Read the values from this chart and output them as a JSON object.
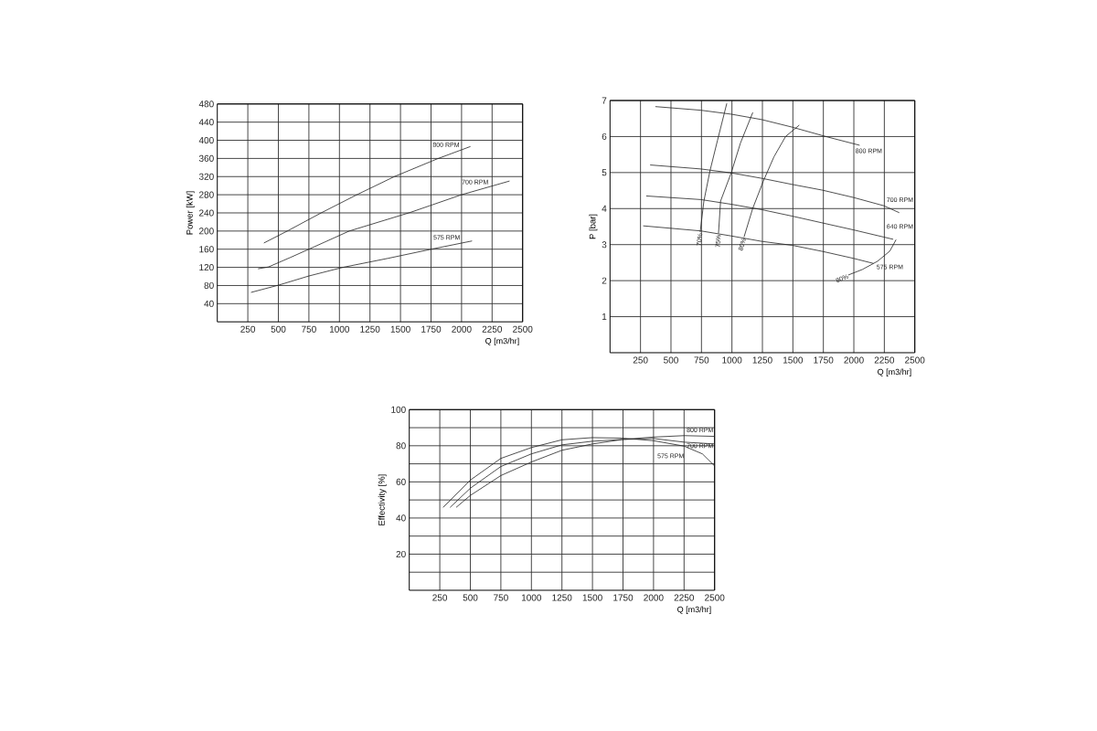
{
  "chart_data": [
    {
      "type": "line",
      "xlabel": "Q [m3/hr]",
      "ylabel": "Power [kW]",
      "xlim": [
        0,
        2500
      ],
      "ylim": [
        0,
        480
      ],
      "xticks": [
        250,
        500,
        750,
        1000,
        1250,
        1500,
        1750,
        2000,
        2250,
        2500
      ],
      "yticks": [
        40,
        80,
        120,
        160,
        200,
        240,
        280,
        320,
        360,
        400,
        440,
        480
      ],
      "grid": true,
      "series": [
        {
          "name": "800 RPM",
          "color": "#222222",
          "x": [
            384,
            580,
            850,
            1150,
            1450,
            1800,
            2070
          ],
          "values": [
            174,
            201,
            240,
            281,
            320,
            359,
            386
          ]
        },
        {
          "name": "700 RPM",
          "color": "#222222",
          "x": [
            337,
            420,
            600,
            750,
            1080,
            1580,
            2000,
            2390
          ],
          "values": [
            117,
            121,
            142,
            160,
            200,
            241,
            280,
            310
          ]
        },
        {
          "name": "575 RPM",
          "color": "#222222",
          "x": [
            279,
            504,
            750,
            1028,
            1400,
            1752,
            2083
          ],
          "values": [
            65,
            81,
            101,
            120,
            140,
            160,
            178
          ]
        }
      ]
    },
    {
      "type": "line",
      "xlabel": "Q [m3/hr]",
      "ylabel": "P [bar]",
      "xlim": [
        0,
        2500
      ],
      "ylim": [
        0,
        7
      ],
      "xticks": [
        250,
        500,
        750,
        1000,
        1250,
        1500,
        1750,
        2000,
        2250,
        2500
      ],
      "yticks": [
        1,
        2,
        3,
        4,
        5,
        6,
        7
      ],
      "grid": true,
      "series": [
        {
          "name": "800 RPM",
          "color": "#222222",
          "x": [
            375,
            745,
            995,
            1245,
            1495,
            1770,
            2045
          ],
          "values": [
            6.83,
            6.73,
            6.62,
            6.47,
            6.26,
            6.0,
            5.76
          ]
        },
        {
          "name": "700 RPM",
          "color": "#222222",
          "x": [
            332,
            745,
            995,
            1245,
            1495,
            1745,
            1995,
            2245,
            2370
          ],
          "values": [
            5.21,
            5.1,
            4.99,
            4.84,
            4.67,
            4.51,
            4.31,
            4.08,
            3.89
          ]
        },
        {
          "name": "640 RPM",
          "color": "#222222",
          "x": [
            300,
            745,
            995,
            1245,
            1495,
            1745,
            1995,
            2245,
            2320
          ],
          "values": [
            4.35,
            4.25,
            4.12,
            3.97,
            3.79,
            3.6,
            3.41,
            3.21,
            3.15
          ]
        },
        {
          "name": "575 RPM",
          "color": "#222222",
          "x": [
            275,
            745,
            995,
            1245,
            1495,
            1745,
            1995,
            2158
          ],
          "values": [
            3.52,
            3.38,
            3.24,
            3.09,
            2.98,
            2.81,
            2.62,
            2.48
          ]
        },
        {
          "name": "70%",
          "color": "#222222",
          "x": [
            740,
            770,
            820,
            882,
            957
          ],
          "values": [
            3.36,
            4.21,
            5.05,
            5.9,
            6.91
          ]
        },
        {
          "name": "75%",
          "color": "#222222",
          "x": [
            890,
            907,
            995,
            1070,
            1170
          ],
          "values": [
            3.32,
            4.21,
            5.0,
            5.82,
            6.66
          ]
        },
        {
          "name": "80%",
          "color": "#222222",
          "x": [
            1100,
            1170,
            1257,
            1345,
            1440,
            1550
          ],
          "values": [
            3.22,
            4.0,
            4.76,
            5.44,
            6.0,
            6.31
          ]
        },
        {
          "name": "80%",
          "color": "#222222",
          "x": [
            1957,
            2070,
            2195,
            2295,
            2345
          ],
          "values": [
            2.16,
            2.31,
            2.54,
            2.82,
            3.13
          ]
        }
      ]
    },
    {
      "type": "line",
      "xlabel": "Q [m3/hr]",
      "ylabel": "Effectivity [%]",
      "xlim": [
        0,
        2500
      ],
      "ylim": [
        0,
        100
      ],
      "xticks": [
        250,
        500,
        750,
        1000,
        1250,
        1500,
        1750,
        2000,
        2250,
        2500
      ],
      "yticks": [
        {
          "value": 10,
          "label": null
        },
        20,
        {
          "value": 30,
          "label": null
        },
        40,
        {
          "value": 50,
          "label": null
        },
        60,
        {
          "value": 70,
          "label": null
        },
        80,
        {
          "value": 90,
          "label": null
        },
        100
      ],
      "grid": true,
      "series": [
        {
          "name": "800 RPM",
          "color": "#222222",
          "x": [
            386,
            500,
            750,
            1000,
            1250,
            1500,
            1750,
            2000,
            2250,
            2500
          ],
          "values": [
            46,
            52.5,
            63.5,
            71,
            77.5,
            81,
            83.5,
            84.8,
            85.6,
            85.2
          ]
        },
        {
          "name": "700 RPM",
          "color": "#222222",
          "x": [
            336,
            500,
            750,
            1000,
            1250,
            1500,
            1750,
            2000,
            2250,
            2500
          ],
          "values": [
            46,
            56.5,
            68.5,
            75.5,
            80.5,
            82.5,
            83.5,
            84,
            82,
            81
          ]
        },
        {
          "name": "575 RPM",
          "color": "#222222",
          "x": [
            279,
            500,
            750,
            1000,
            1250,
            1500,
            1750,
            2000,
            2250,
            2400,
            2500
          ],
          "values": [
            46,
            61,
            73,
            79,
            83.3,
            84.5,
            84.2,
            82.8,
            79.8,
            75.5,
            68.8
          ]
        }
      ]
    }
  ]
}
